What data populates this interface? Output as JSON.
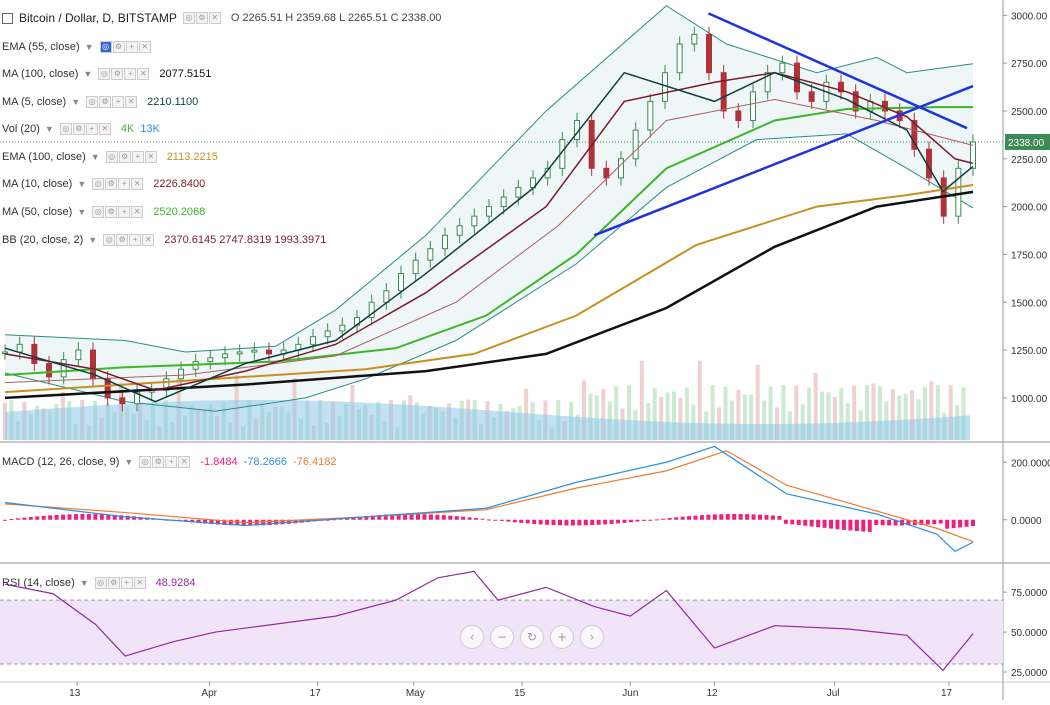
{
  "legend": {
    "title": "Bitcoin / Dollar, D, BITSTAMP",
    "ohlc": "O 2265.51 H 2359.68 L 2265.51 C 2338.00",
    "ema55": "EMA (55, close)",
    "ma100": "MA (100, close)",
    "ma100_val": "2077.5151",
    "ma5": "MA (5, close)",
    "ma5_val": "2210.1100",
    "vol": "Vol (20)",
    "vol_val1": "4K",
    "vol_val2": "13K",
    "ema100": "EMA (100, close)",
    "ema100_val": "2113.2215",
    "ma10": "MA (10, close)",
    "ma10_val": "2226.8400",
    "ma50": "MA (50, close)",
    "ma50_val": "2520.2068",
    "bb": "BB (20, close, 2)",
    "bb_val": "2370.6145 2747.8319 1993.3971",
    "macd": "MACD (12, 26, close, 9)",
    "macd_v1": "-1.8484",
    "macd_v2": "-78.2666",
    "macd_v3": "-76.4182",
    "rsi": "RSI (14, close)",
    "rsi_val": "48.9284"
  },
  "nav": [
    "‹",
    "−",
    "↻",
    "+",
    "›"
  ],
  "colors": {
    "up": "#3c8a55",
    "down": "#b0333a",
    "bb": "#2c8c84",
    "bb_fill": "#eef6f7",
    "ma5": "#123d3d",
    "ma10": "#7d1a2c",
    "ema55": "#a86060",
    "ma50": "#3fb52a",
    "ema100": "#c89020",
    "ma100": "#111111",
    "trend": "#1f33dd",
    "macd": "#2e8fe0",
    "signal": "#f07a30",
    "hist": "#f0207a",
    "rsi": "#8e2c9c",
    "rsi_fill": "#f1e4f8",
    "vol_avg": "#8ec8ea"
  },
  "chart_data": [
    {
      "type": "candlestick",
      "title": "Bitcoin / Dollar, D, BITSTAMP",
      "x_ticks": [
        "13",
        "Apr",
        "17",
        "May",
        "15",
        "Jun",
        "12",
        "Jul",
        "17"
      ],
      "y_ticks": [
        "1000.00",
        "1250.00",
        "1500.00",
        "1750.00",
        "2000.00",
        "2250.00",
        "2500.00",
        "2750.00",
        "3000.00"
      ],
      "ylim": [
        780,
        3080
      ],
      "last_price": "2338.00",
      "series": [
        {
          "name": "MA (100, close)",
          "values": [
            [
              0,
              1000
            ],
            [
              40,
              1070
            ],
            [
              70,
              1140
            ],
            [
              90,
              1230
            ],
            [
              110,
              1470
            ],
            [
              128,
              1790
            ],
            [
              145,
              2000
            ],
            [
              161,
              2077
            ]
          ]
        },
        {
          "name": "EMA (100, close)",
          "values": [
            [
              0,
              1030
            ],
            [
              30,
              1090
            ],
            [
              60,
              1150
            ],
            [
              78,
              1230
            ],
            [
              95,
              1430
            ],
            [
              115,
              1800
            ],
            [
              135,
              2000
            ],
            [
              150,
              2060
            ],
            [
              161,
              2113
            ]
          ]
        },
        {
          "name": "MA (50, close)",
          "values": [
            [
              0,
              1120
            ],
            [
              20,
              1160
            ],
            [
              45,
              1190
            ],
            [
              65,
              1260
            ],
            [
              80,
              1430
            ],
            [
              95,
              1750
            ],
            [
              110,
              2200
            ],
            [
              128,
              2450
            ],
            [
              140,
              2510
            ],
            [
              155,
              2520
            ],
            [
              161,
              2520
            ]
          ]
        },
        {
          "name": "EMA (55, close)",
          "values": [
            [
              0,
              1080
            ],
            [
              30,
              1120
            ],
            [
              55,
              1220
            ],
            [
              75,
              1500
            ],
            [
              92,
              1900
            ],
            [
              110,
              2450
            ],
            [
              128,
              2560
            ],
            [
              145,
              2450
            ],
            [
              161,
              2320
            ]
          ]
        },
        {
          "name": "MA (10, close)",
          "values": [
            [
              0,
              1230
            ],
            [
              15,
              1150
            ],
            [
              25,
              1040
            ],
            [
              40,
              1140
            ],
            [
              55,
              1280
            ],
            [
              70,
              1550
            ],
            [
              90,
              2000
            ],
            [
              103,
              2550
            ],
            [
              118,
              2650
            ],
            [
              128,
              2700
            ],
            [
              140,
              2600
            ],
            [
              150,
              2470
            ],
            [
              158,
              2250
            ],
            [
              161,
              2226
            ]
          ]
        },
        {
          "name": "MA (5, close)",
          "values": [
            [
              0,
              1260
            ],
            [
              15,
              1120
            ],
            [
              25,
              980
            ],
            [
              40,
              1180
            ],
            [
              55,
              1300
            ],
            [
              70,
              1650
            ],
            [
              88,
              2100
            ],
            [
              103,
              2700
            ],
            [
              118,
              2550
            ],
            [
              128,
              2700
            ],
            [
              140,
              2560
            ],
            [
              150,
              2400
            ],
            [
              156,
              2080
            ],
            [
              161,
              2210
            ]
          ]
        },
        {
          "name": "BB upper",
          "values": [
            [
              0,
              1330
            ],
            [
              20,
              1300
            ],
            [
              30,
              1240
            ],
            [
              45,
              1270
            ],
            [
              55,
              1460
            ],
            [
              70,
              1850
            ],
            [
              90,
              2500
            ],
            [
              110,
              3050
            ],
            [
              120,
              2850
            ],
            [
              135,
              2700
            ],
            [
              145,
              2780
            ],
            [
              150,
              2700
            ],
            [
              161,
              2747
            ]
          ]
        },
        {
          "name": "BB lower",
          "values": [
            [
              0,
              1130
            ],
            [
              20,
              980
            ],
            [
              35,
              930
            ],
            [
              50,
              1000
            ],
            [
              60,
              1100
            ],
            [
              75,
              1300
            ],
            [
              95,
              1700
            ],
            [
              110,
              2100
            ],
            [
              125,
              2350
            ],
            [
              140,
              2380
            ],
            [
              150,
              2200
            ],
            [
              161,
              1993
            ]
          ]
        },
        {
          "name": "Trendline support",
          "values": [
            [
              98,
              1850
            ],
            [
              161,
              2630
            ]
          ]
        },
        {
          "name": "Trendline resistance",
          "values": [
            [
              117,
              3010
            ],
            [
              160,
              2410
            ]
          ]
        }
      ],
      "candles": [
        1240,
        1280,
        1180,
        1110,
        1200,
        1250,
        1100,
        1000,
        970,
        1030,
        1040,
        1100,
        1150,
        1190,
        1210,
        1230,
        1240,
        1250,
        1230,
        1250,
        1280,
        1320,
        1350,
        1380,
        1420,
        1500,
        1560,
        1650,
        1720,
        1780,
        1850,
        1900,
        1950,
        2000,
        2050,
        2100,
        2150,
        2200,
        2350,
        2450,
        2200,
        2150,
        2250,
        2400,
        2550,
        2700,
        2850,
        2900,
        2700,
        2500,
        2450,
        2600,
        2700,
        2750,
        2600,
        2550,
        2650,
        2600,
        2500,
        2550,
        2500,
        2450,
        2300,
        2150,
        1950,
        2200,
        2338
      ]
    },
    {
      "type": "line",
      "title": "MACD (12, 26, close, 9)",
      "y_ticks": [
        "200.0000",
        "0.0000"
      ],
      "ylim": [
        -140,
        260
      ],
      "series": [
        {
          "name": "MACD",
          "values": [
            [
              0,
              60
            ],
            [
              20,
              10
            ],
            [
              40,
              -20
            ],
            [
              60,
              10
            ],
            [
              80,
              40
            ],
            [
              95,
              130
            ],
            [
              110,
              200
            ],
            [
              118,
              255
            ],
            [
              130,
              90
            ],
            [
              145,
              20
            ],
            [
              155,
              -50
            ],
            [
              158,
              -110
            ],
            [
              161,
              -78
            ]
          ]
        },
        {
          "name": "Signal",
          "values": [
            [
              0,
              55
            ],
            [
              20,
              25
            ],
            [
              40,
              -10
            ],
            [
              60,
              10
            ],
            [
              80,
              35
            ],
            [
              95,
              110
            ],
            [
              110,
              170
            ],
            [
              120,
              240
            ],
            [
              130,
              120
            ],
            [
              145,
              30
            ],
            [
              155,
              -30
            ],
            [
              161,
              -76
            ]
          ]
        }
      ]
    },
    {
      "type": "line",
      "title": "RSI (14, close)",
      "y_ticks": [
        "75.0000",
        "50.0000",
        "25.0000"
      ],
      "ylim": [
        20,
        92
      ],
      "series": [
        {
          "name": "RSI",
          "values": [
            [
              0,
              80
            ],
            [
              8,
              74
            ],
            [
              15,
              55
            ],
            [
              20,
              35
            ],
            [
              28,
              44
            ],
            [
              35,
              50
            ],
            [
              45,
              55
            ],
            [
              55,
              60
            ],
            [
              65,
              70
            ],
            [
              72,
              84
            ],
            [
              78,
              88
            ],
            [
              82,
              70
            ],
            [
              90,
              78
            ],
            [
              98,
              66
            ],
            [
              104,
              60
            ],
            [
              110,
              76
            ],
            [
              118,
              40
            ],
            [
              128,
              54
            ],
            [
              140,
              52
            ],
            [
              150,
              48
            ],
            [
              156,
              26
            ],
            [
              161,
              49
            ]
          ]
        }
      ]
    }
  ]
}
